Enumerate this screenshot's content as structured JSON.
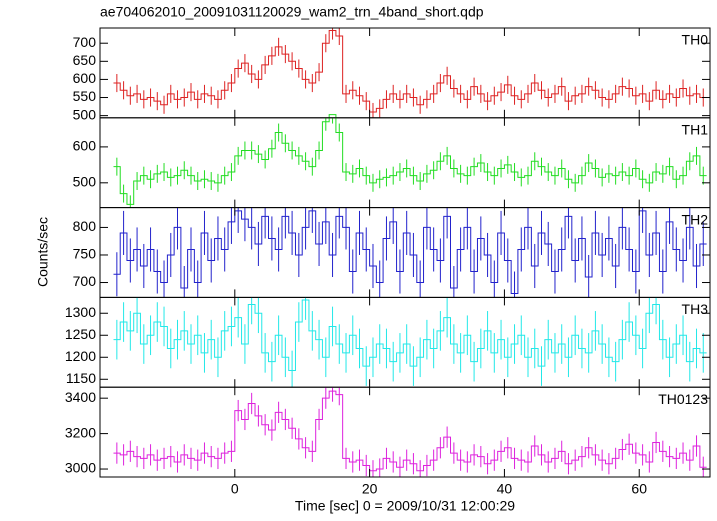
{
  "chart_data": {
    "type": "step",
    "title": "ae704062010_20091031120029_wam2_trn_4band_short.qdp",
    "xlabel": "Time [sec] 0 = 2009/10/31 12:00:29",
    "ylabel": "Counts/sec",
    "xlim": [
      -20,
      70.5
    ],
    "xticks": [
      0,
      20,
      40,
      60
    ],
    "x": [
      -17.5,
      -16.5,
      -15.5,
      -14.5,
      -13.5,
      -12.5,
      -11.5,
      -10.5,
      -9.5,
      -8.5,
      -7.5,
      -6.5,
      -5.5,
      -4.5,
      -3.5,
      -2.5,
      -1.5,
      -0.5,
      0.5,
      1.5,
      2.5,
      3.5,
      4.5,
      5.5,
      6.5,
      7.5,
      8.5,
      9.5,
      10.5,
      11.5,
      12.5,
      13.5,
      14.5,
      15.5,
      16.5,
      17.5,
      18.5,
      19.5,
      20.5,
      21.5,
      22.5,
      23.5,
      24.5,
      25.5,
      26.5,
      27.5,
      28.5,
      29.5,
      30.5,
      31.5,
      32.5,
      33.5,
      34.5,
      35.5,
      36.5,
      37.5,
      38.5,
      39.5,
      40.5,
      41.5,
      42.5,
      43.5,
      44.5,
      45.5,
      46.5,
      47.5,
      48.5,
      49.5,
      50.5,
      51.5,
      52.5,
      53.5,
      54.5,
      55.5,
      56.5,
      57.5,
      58.5,
      59.5,
      60.5,
      61.5,
      62.5,
      63.5,
      64.5,
      65.5,
      66.5,
      67.5,
      68.5,
      69.5
    ],
    "panels": [
      {
        "name": "TH0",
        "color": "#dd2222",
        "error": 25,
        "ylim": [
          494,
          742
        ],
        "yticks": [
          500,
          550,
          600,
          650,
          700
        ],
        "values": [
          590,
          570,
          555,
          560,
          545,
          550,
          540,
          530,
          560,
          545,
          550,
          565,
          545,
          560,
          555,
          545,
          570,
          590,
          630,
          645,
          615,
          600,
          640,
          665,
          690,
          670,
          650,
          630,
          600,
          590,
          620,
          700,
          735,
          720,
          560,
          570,
          555,
          540,
          510,
          520,
          545,
          560,
          545,
          560,
          550,
          530,
          545,
          560,
          590,
          610,
          575,
          560,
          545,
          580,
          560,
          540,
          555,
          565,
          585,
          555,
          545,
          560,
          590,
          570,
          550,
          560,
          580,
          540,
          555,
          560,
          580,
          570,
          550,
          545,
          560,
          580,
          575,
          555,
          560,
          540,
          570,
          545,
          560,
          550,
          575,
          555,
          560,
          550
        ]
      },
      {
        "name": "TH1",
        "color": "#22dd22",
        "error": 25,
        "ylim": [
          431,
          681
        ],
        "yticks": [
          500,
          600
        ],
        "values": [
          545,
          470,
          440,
          505,
          520,
          510,
          525,
          530,
          515,
          520,
          535,
          520,
          505,
          510,
          505,
          500,
          520,
          530,
          575,
          590,
          590,
          580,
          565,
          595,
          640,
          610,
          590,
          575,
          560,
          545,
          590,
          670,
          690,
          640,
          530,
          525,
          540,
          520,
          500,
          510,
          515,
          520,
          530,
          540,
          520,
          505,
          525,
          535,
          560,
          575,
          540,
          525,
          520,
          545,
          555,
          530,
          520,
          540,
          550,
          530,
          515,
          520,
          560,
          545,
          530,
          520,
          540,
          510,
          500,
          520,
          555,
          540,
          515,
          525,
          520,
          530,
          520,
          540,
          510,
          500,
          530,
          525,
          545,
          510,
          520,
          560,
          575,
          520
        ]
      },
      {
        "name": "TH2",
        "color": "#2222cc",
        "error": 40,
        "ylim": [
          673,
          836
        ],
        "yticks": [
          700,
          750,
          800
        ],
        "values": [
          715,
          790,
          740,
          760,
          730,
          760,
          720,
          700,
          750,
          800,
          690,
          760,
          700,
          790,
          740,
          780,
          760,
          810,
          830,
          815,
          800,
          770,
          820,
          780,
          760,
          820,
          790,
          750,
          800,
          830,
          770,
          810,
          750,
          820,
          800,
          720,
          790,
          760,
          730,
          700,
          780,
          810,
          720,
          790,
          750,
          700,
          800,
          760,
          740,
          820,
          690,
          760,
          800,
          720,
          780,
          750,
          700,
          790,
          740,
          680,
          760,
          800,
          730,
          790,
          770,
          720,
          760,
          820,
          740,
          780,
          710,
          790,
          750,
          780,
          730,
          800,
          760,
          720,
          830,
          750,
          790,
          720,
          810,
          760,
          740,
          800,
          730,
          770
        ]
      },
      {
        "name": "TH3",
        "color": "#22e8e8",
        "error": 45,
        "ylim": [
          1132,
          1336
        ],
        "yticks": [
          1150,
          1200,
          1250,
          1300
        ],
        "values": [
          1240,
          1280,
          1260,
          1300,
          1230,
          1250,
          1280,
          1270,
          1220,
          1240,
          1260,
          1230,
          1250,
          1210,
          1240,
          1200,
          1260,
          1270,
          1290,
          1230,
          1320,
          1300,
          1210,
          1190,
          1250,
          1200,
          1170,
          1280,
          1330,
          1260,
          1240,
          1200,
          1270,
          1230,
          1210,
          1250,
          1220,
          1180,
          1200,
          1230,
          1220,
          1190,
          1210,
          1230,
          1180,
          1200,
          1240,
          1220,
          1260,
          1290,
          1230,
          1210,
          1250,
          1190,
          1220,
          1260,
          1210,
          1240,
          1200,
          1230,
          1250,
          1200,
          1220,
          1180,
          1240,
          1210,
          1230,
          1200,
          1250,
          1220,
          1210,
          1260,
          1230,
          1200,
          1190,
          1240,
          1280,
          1250,
          1220,
          1300,
          1320,
          1240,
          1200,
          1230,
          1250,
          1190,
          1220,
          1210
        ]
      },
      {
        "name": "TH0123",
        "color": "#dd22dd",
        "error": 60,
        "ylim": [
          2955,
          3462
        ],
        "yticks": [
          3000,
          3200,
          3400
        ],
        "values": [
          3090,
          3080,
          3100,
          3070,
          3060,
          3080,
          3050,
          3060,
          3070,
          3040,
          3080,
          3060,
          3050,
          3090,
          3070,
          3060,
          3090,
          3100,
          3330,
          3280,
          3370,
          3300,
          3250,
          3220,
          3320,
          3280,
          3230,
          3170,
          3120,
          3100,
          3280,
          3400,
          3440,
          3420,
          3060,
          3040,
          3050,
          3020,
          2990,
          3000,
          3060,
          3040,
          3010,
          3050,
          3030,
          2990,
          3020,
          3050,
          3120,
          3180,
          3090,
          3050,
          3040,
          3080,
          3070,
          3030,
          3050,
          3100,
          3120,
          3060,
          3050,
          3040,
          3130,
          3080,
          3040,
          3060,
          3100,
          3030,
          3050,
          3070,
          3120,
          3080,
          3050,
          3030,
          3060,
          3110,
          3140,
          3090,
          3080,
          3040,
          3150,
          3100,
          3070,
          3060,
          3090,
          3050,
          3130,
          3010
        ]
      }
    ]
  }
}
